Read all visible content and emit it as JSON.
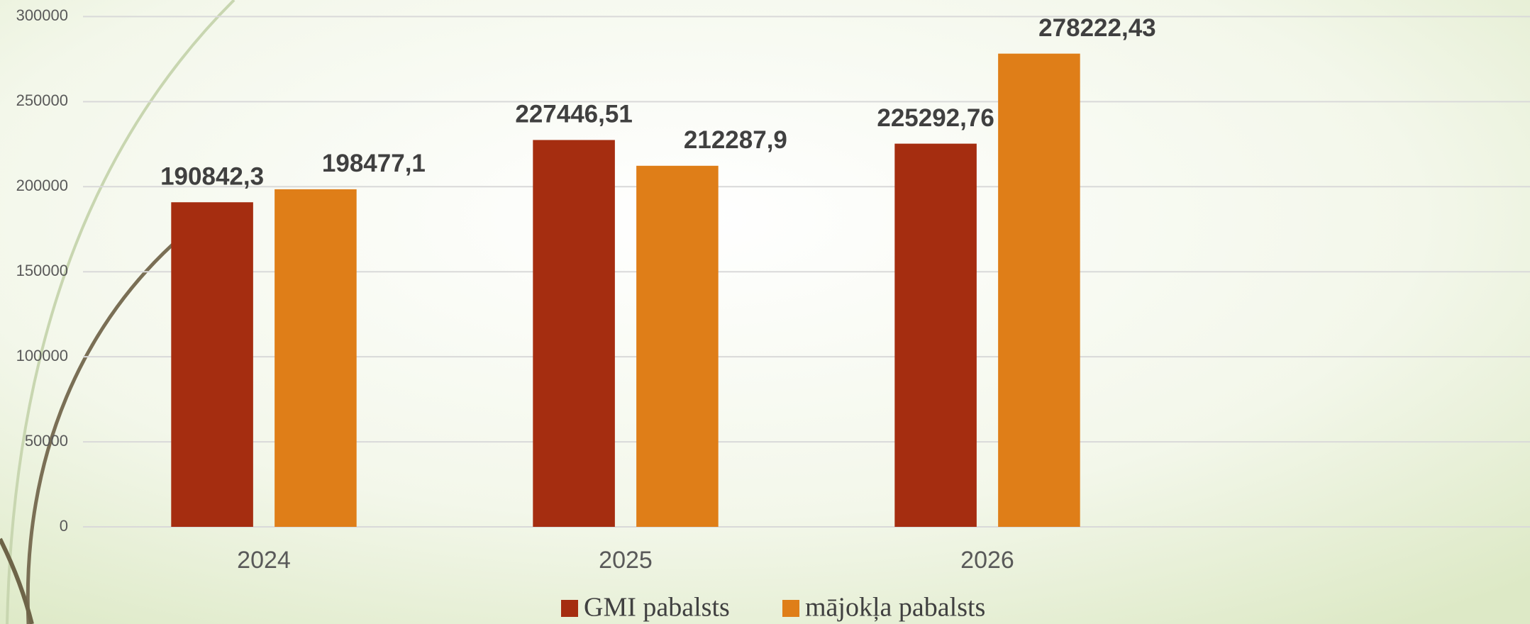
{
  "chart_data": {
    "type": "bar",
    "categories": [
      "2024",
      "2025",
      "2026",
      null
    ],
    "series": [
      {
        "name": "GMI pabalsts",
        "color": "#a52d10",
        "values": [
          190842.3,
          227446.51,
          225292.76,
          null
        ],
        "value_labels": [
          "190842,3",
          "227446,51",
          "225292,76",
          null
        ]
      },
      {
        "name": "mājokļa pabalsts",
        "color": "#df7e18",
        "values": [
          198477.1,
          212287.9,
          278222.43,
          null
        ],
        "value_labels": [
          "198477,1",
          "212287,9",
          "278222,43",
          null
        ]
      }
    ],
    "ylim": [
      0,
      300000
    ],
    "yticks": [
      0,
      50000,
      100000,
      150000,
      200000,
      250000,
      300000
    ],
    "grid": true,
    "legend": "bottom"
  }
}
